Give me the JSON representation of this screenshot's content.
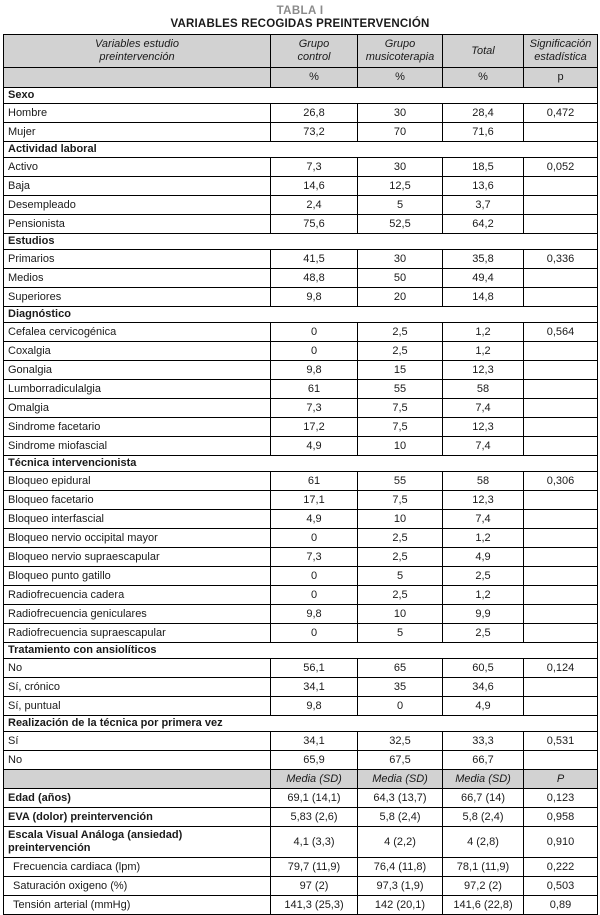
{
  "title": {
    "label": "TABLA I",
    "subtitle": "VARIABLES RECOGIDAS PREINTERVENCIÓN"
  },
  "header": {
    "variables": "Variables estudio preintervención",
    "group_control": "Grupo control",
    "group_music": "Grupo musicoterapia",
    "total": "Total",
    "significance": "Significación estadística",
    "unit_row": [
      "%",
      "%",
      "%",
      "p"
    ]
  },
  "sections": [
    {
      "header": "Sexo",
      "rows": [
        {
          "label": "Hombre",
          "values": [
            "26,8",
            "30",
            "28,4",
            "0,472"
          ]
        },
        {
          "label": "Mujer",
          "values": [
            "73,2",
            "70",
            "71,6",
            ""
          ]
        }
      ]
    },
    {
      "header": "Actividad laboral",
      "rows": [
        {
          "label": "Activo",
          "values": [
            "7,3",
            "30",
            "18,5",
            "0,052"
          ]
        },
        {
          "label": "Baja",
          "values": [
            "14,6",
            "12,5",
            "13,6",
            ""
          ]
        },
        {
          "label": "Desempleado",
          "values": [
            "2,4",
            "5",
            "3,7",
            ""
          ]
        },
        {
          "label": "Pensionista",
          "values": [
            "75,6",
            "52,5",
            "64,2",
            ""
          ]
        }
      ]
    },
    {
      "header": "Estudios",
      "rows": [
        {
          "label": "Primarios",
          "values": [
            "41,5",
            "30",
            "35,8",
            "0,336"
          ]
        },
        {
          "label": "Medios",
          "values": [
            "48,8",
            "50",
            "49,4",
            ""
          ]
        },
        {
          "label": "Superiores",
          "values": [
            "9,8",
            "20",
            "14,8",
            ""
          ]
        }
      ]
    },
    {
      "header": "Diagnóstico",
      "rows": [
        {
          "label": "Cefalea cervicogénica",
          "values": [
            "0",
            "2,5",
            "1,2",
            "0,564"
          ]
        },
        {
          "label": "Coxalgia",
          "values": [
            "0",
            "2,5",
            "1,2",
            ""
          ]
        },
        {
          "label": "Gonalgia",
          "values": [
            "9,8",
            "15",
            "12,3",
            ""
          ]
        },
        {
          "label": "Lumborradiculalgia",
          "values": [
            "61",
            "55",
            "58",
            ""
          ]
        },
        {
          "label": "Omalgia",
          "values": [
            "7,3",
            "7,5",
            "7,4",
            ""
          ]
        },
        {
          "label": "Sindrome facetario",
          "values": [
            "17,2",
            "7,5",
            "12,3",
            ""
          ]
        },
        {
          "label": "Sindrome miofascial",
          "values": [
            "4,9",
            "10",
            "7,4",
            ""
          ]
        }
      ]
    },
    {
      "header": "Técnica intervencionista",
      "rows": [
        {
          "label": "Bloqueo epidural",
          "values": [
            "61",
            "55",
            "58",
            "0,306"
          ]
        },
        {
          "label": "Bloqueo facetario",
          "values": [
            "17,1",
            "7,5",
            "12,3",
            ""
          ]
        },
        {
          "label": "Bloqueo interfascial",
          "values": [
            "4,9",
            "10",
            "7,4",
            ""
          ]
        },
        {
          "label": "Bloqueo nervio occipital mayor",
          "values": [
            "0",
            "2,5",
            "1,2",
            ""
          ]
        },
        {
          "label": "Bloqueo nervio supraescapular",
          "values": [
            "7,3",
            "2,5",
            "4,9",
            ""
          ]
        },
        {
          "label": "Bloqueo punto gatillo",
          "values": [
            "0",
            "5",
            "2,5",
            ""
          ]
        },
        {
          "label": "Radiofrecuencia cadera",
          "values": [
            "0",
            "2,5",
            "1,2",
            ""
          ]
        },
        {
          "label": "Radiofrecuencia geniculares",
          "values": [
            "9,8",
            "10",
            "9,9",
            ""
          ]
        },
        {
          "label": "Radiofrecuencia supraescapular",
          "values": [
            "0",
            "5",
            "2,5",
            ""
          ]
        }
      ]
    },
    {
      "header": "Tratamiento con ansiolíticos",
      "rows": [
        {
          "label": "No",
          "values": [
            "56,1",
            "65",
            "60,5",
            "0,124"
          ]
        },
        {
          "label": "Sí, crónico",
          "values": [
            "34,1",
            "35",
            "34,6",
            ""
          ]
        },
        {
          "label": "Sí, puntual",
          "values": [
            "9,8",
            "0",
            "4,9",
            ""
          ]
        }
      ]
    },
    {
      "header": "Realización de la técnica por primera vez",
      "rows": [
        {
          "label": "Sí",
          "values": [
            "34,1",
            "32,5",
            "33,3",
            "0,531"
          ]
        },
        {
          "label": "No",
          "values": [
            "65,9",
            "67,5",
            "66,7",
            ""
          ]
        }
      ]
    }
  ],
  "measures": {
    "header": [
      "Media (SD)",
      "Media (SD)",
      "Media (SD)",
      "P"
    ],
    "rows": [
      {
        "label": "Edad (años)",
        "bold": true,
        "values": [
          "69,1 (14,1)",
          "64,3 (13,7)",
          "66,7 (14)",
          "0,123"
        ]
      },
      {
        "label": "EVA (dolor) preintervención",
        "bold": true,
        "values": [
          "5,83 (2,6)",
          "5,8 (2,4)",
          "5,8 (2,4)",
          "0,958"
        ]
      },
      {
        "label": "Escala Visual Análoga (ansiedad) preintervención",
        "bold": true,
        "values": [
          "4,1 (3,3)",
          "4 (2,2)",
          "4 (2,8)",
          "0,910"
        ]
      },
      {
        "label": "Frecuencia cardiaca (lpm)",
        "bold": false,
        "values": [
          "79,7 (11,9)",
          "76,4 (11,8)",
          "78,1 (11,9)",
          "0,222"
        ]
      },
      {
        "label": "Saturación oxigeno (%)",
        "bold": false,
        "values": [
          "97 (2)",
          "97,3 (1,9)",
          "97,2 (2)",
          "0,503"
        ]
      },
      {
        "label": "Tensión arterial (mmHg)",
        "bold": false,
        "values": [
          "141,3 (25,3)",
          "142 (20,1)",
          "141,6 (22,8)",
          "0,89"
        ]
      }
    ]
  },
  "colors": {
    "header_bg": "#d2d2d2",
    "border": "#000000",
    "title_muted": "#8b8b8b",
    "text": "#1a1a1a"
  }
}
